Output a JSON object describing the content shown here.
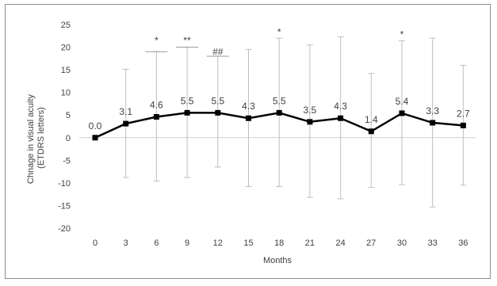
{
  "chart_data": {
    "type": "line",
    "xlabel": "Months",
    "ylabel": [
      "Chnage in visual acuity",
      "(ETDRS letters)"
    ],
    "ylim": [
      -20,
      25
    ],
    "yticks": [
      25,
      20,
      15,
      10,
      5,
      0,
      -5,
      -10,
      -15,
      -20
    ],
    "x": [
      0,
      3,
      6,
      9,
      12,
      15,
      18,
      21,
      24,
      27,
      30,
      33,
      36
    ],
    "x_labels": [
      "0",
      "3",
      "6",
      "9",
      "12",
      "15",
      "18",
      "21",
      "24",
      "27",
      "30",
      "33",
      "36"
    ],
    "series": [
      {
        "values": [
          0.0,
          3.1,
          4.6,
          5.5,
          5.5,
          4.3,
          5.5,
          3.5,
          4.3,
          1.4,
          5.4,
          3.3,
          2.7
        ],
        "data_labels": [
          "0.0",
          "3.1",
          "4.6",
          "5.5",
          "5.5",
          "4.3",
          "5.5",
          "3.5",
          "4.3",
          "1.4",
          "5.4",
          "3.3",
          "2.7"
        ],
        "error_upper": [
          0.0,
          15.1,
          19.0,
          20.0,
          18.0,
          19.5,
          22.0,
          20.5,
          22.3,
          14.2,
          21.4,
          22.0,
          16.0
        ],
        "error_lower": [
          0.0,
          -8.8,
          -9.6,
          -8.8,
          -6.5,
          -10.8,
          -10.8,
          -13.2,
          -13.5,
          -11.0,
          -10.4,
          -15.3,
          -10.5
        ],
        "color": "#000000"
      }
    ],
    "significance": [
      {
        "x": 6,
        "text": "*",
        "y": 21.5
      },
      {
        "x": 9,
        "text": "**",
        "y": 21.5
      },
      {
        "x": 12,
        "text": "##",
        "y": 19.0
      },
      {
        "x": 18,
        "text": "*",
        "y": 23.3
      },
      {
        "x": 30,
        "text": "*",
        "y": 22.8
      }
    ],
    "grid": false,
    "legend": "none"
  }
}
